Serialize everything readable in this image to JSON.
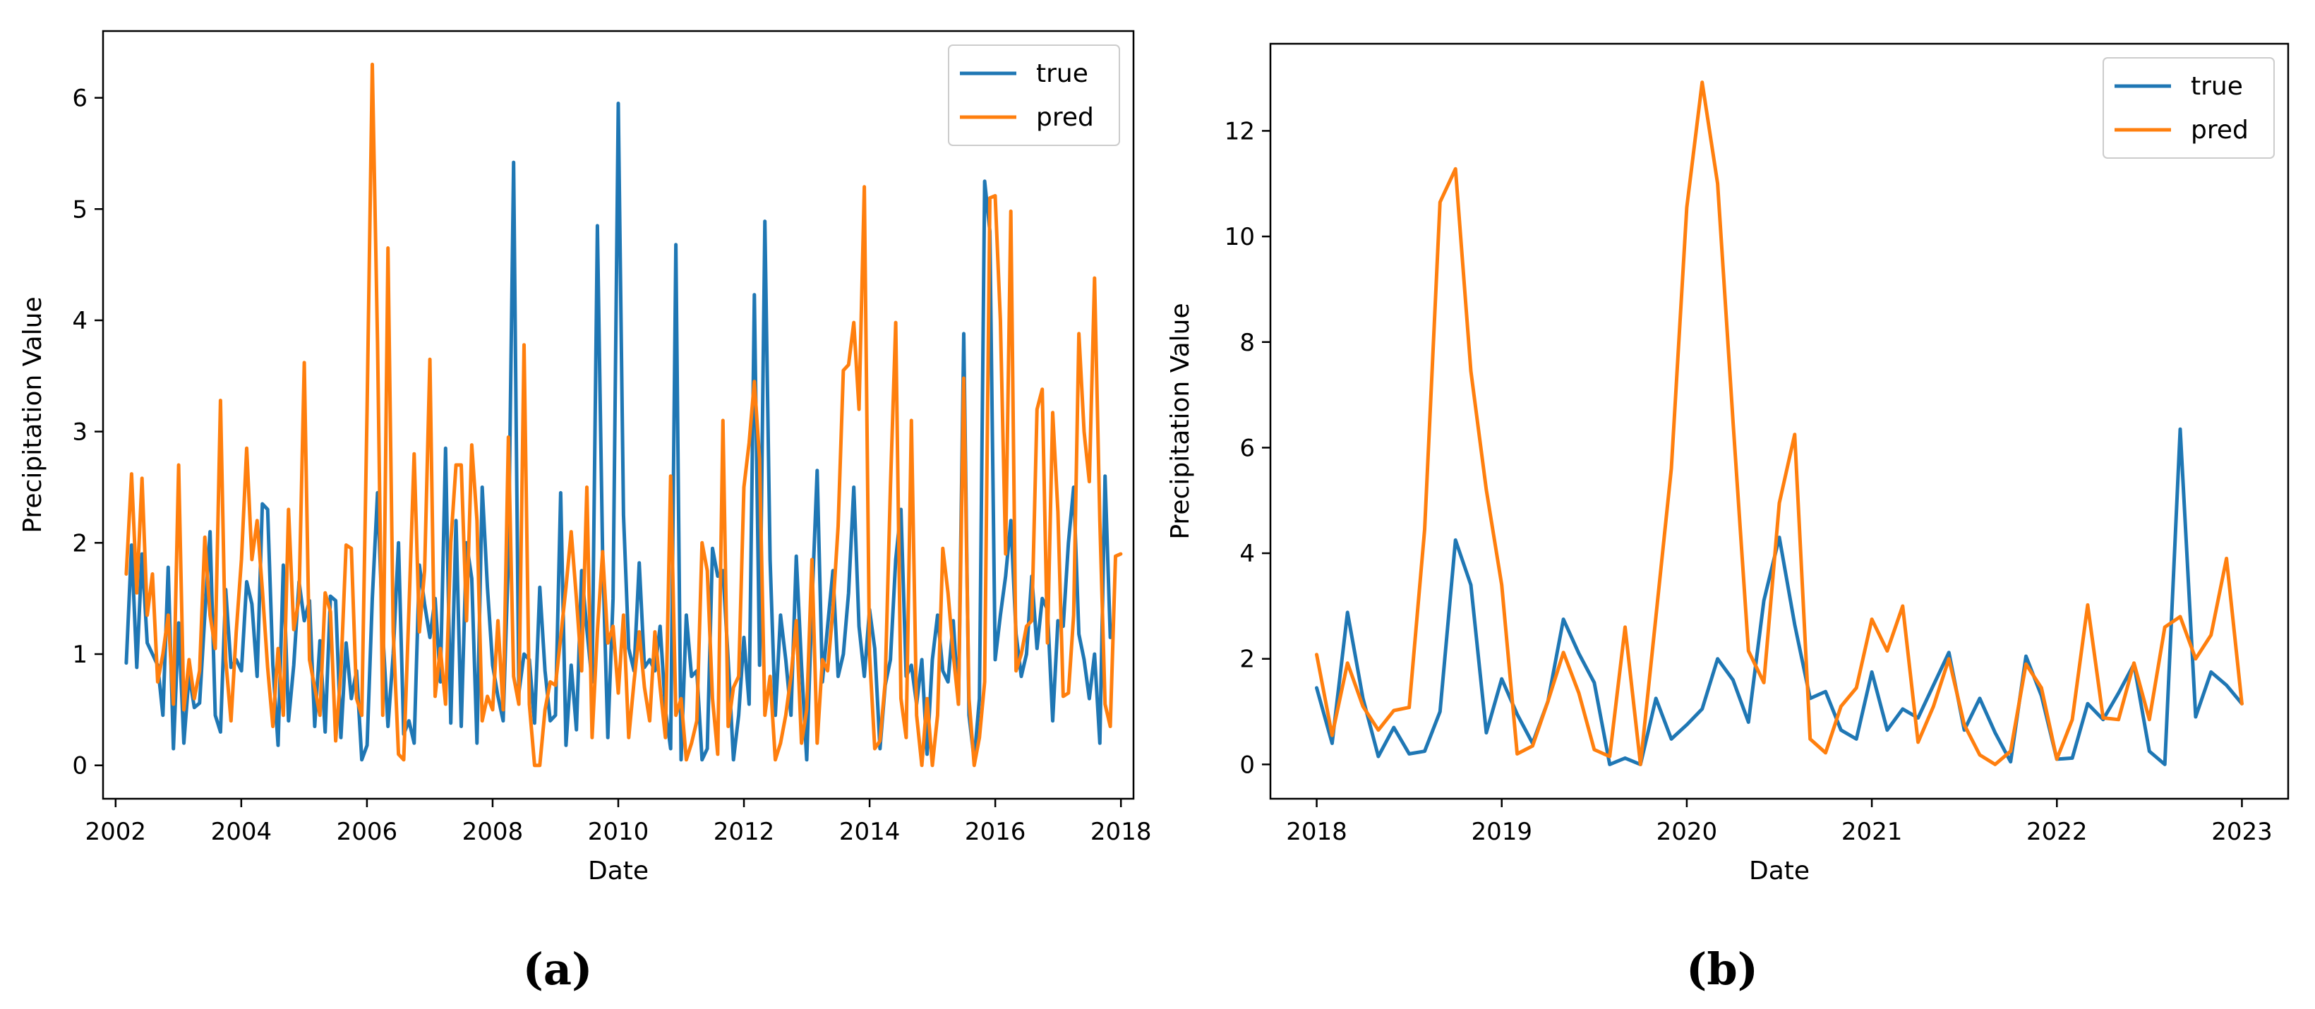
{
  "colors": {
    "true": "#1f77b4",
    "pred": "#ff7f0e",
    "axis": "#000000",
    "legend_border": "#cccccc"
  },
  "chart_data": [
    {
      "type": "line",
      "panel_label": "(a)",
      "xlabel": "Date",
      "ylabel": "Precipitation Value",
      "xlim": [
        2001.8,
        2018.2
      ],
      "ylim": [
        -0.3,
        6.6
      ],
      "xticks": [
        2002,
        2004,
        2006,
        2008,
        2010,
        2012,
        2014,
        2016,
        2018
      ],
      "xtick_labels": [
        "2002",
        "2004",
        "2006",
        "2008",
        "2010",
        "2012",
        "2014",
        "2016",
        "2018"
      ],
      "yticks": [
        0,
        1,
        2,
        3,
        4,
        5,
        6
      ],
      "ytick_labels": [
        "0",
        "1",
        "2",
        "3",
        "4",
        "5",
        "6"
      ],
      "legend": [
        "true",
        "pred"
      ],
      "legend_position": "top-right",
      "x_start": 2002.17,
      "x_step": 0.0833,
      "series": [
        {
          "name": "true",
          "values": [
            0.92,
            1.98,
            0.88,
            1.9,
            1.1,
            1.0,
            0.9,
            0.45,
            1.78,
            0.15,
            1.28,
            0.2,
            0.82,
            0.52,
            0.56,
            1.35,
            2.1,
            0.45,
            0.3,
            1.58,
            0.88,
            0.95,
            0.85,
            1.65,
            1.45,
            0.8,
            2.35,
            2.3,
            0.9,
            0.18,
            1.8,
            0.4,
            0.9,
            1.65,
            1.3,
            1.48,
            0.35,
            1.12,
            0.3,
            1.52,
            1.48,
            0.25,
            1.1,
            0.6,
            0.85,
            0.05,
            0.18,
            1.5,
            2.45,
            1.2,
            0.35,
            1.0,
            2.0,
            0.28,
            0.4,
            0.2,
            1.8,
            1.45,
            1.15,
            1.5,
            0.75,
            2.85,
            0.38,
            2.2,
            0.35,
            2.0,
            1.68,
            0.2,
            2.5,
            1.6,
            0.9,
            0.62,
            0.4,
            1.85,
            5.42,
            0.65,
            1.0,
            0.95,
            0.38,
            1.6,
            0.85,
            0.4,
            0.45,
            2.45,
            0.18,
            0.9,
            0.32,
            1.75,
            1.22,
            0.75,
            4.85,
            1.9,
            0.25,
            1.5,
            5.95,
            2.25,
            1.05,
            0.85,
            1.82,
            0.88,
            0.95,
            0.85,
            1.25,
            0.5,
            0.15,
            4.68,
            0.05,
            1.35,
            0.8,
            0.85,
            0.05,
            0.15,
            1.95,
            1.7,
            1.75,
            0.95,
            0.05,
            0.45,
            1.15,
            0.55,
            4.23,
            0.9,
            4.89,
            1.85,
            0.45,
            1.35,
            0.95,
            0.45,
            1.88,
            0.9,
            0.05,
            1.45,
            2.65,
            0.75,
            1.25,
            1.75,
            0.8,
            1.0,
            1.55,
            2.5,
            1.25,
            0.8,
            1.4,
            1.05,
            0.15,
            0.72,
            0.95,
            1.85,
            2.3,
            0.8,
            0.9,
            0.55,
            0.95,
            0.1,
            0.95,
            1.35,
            0.85,
            0.75,
            1.3,
            0.55,
            3.88,
            0.45,
            0.05,
            0.6,
            5.25,
            4.8,
            0.95,
            1.35,
            1.7,
            2.2,
            1.18,
            0.8,
            1.0,
            1.7,
            1.05,
            1.5,
            1.4,
            0.4,
            1.3,
            1.25,
            2.0,
            2.5,
            1.18,
            0.95,
            0.6,
            1.0,
            0.2,
            2.6,
            1.15
          ]
        },
        {
          "name": "pred",
          "values": [
            1.72,
            2.62,
            1.55,
            2.58,
            1.35,
            1.72,
            0.75,
            1.0,
            1.35,
            0.55,
            2.7,
            0.5,
            0.95,
            0.6,
            0.85,
            2.05,
            1.35,
            1.05,
            3.28,
            0.95,
            0.4,
            1.2,
            1.85,
            2.85,
            1.85,
            2.2,
            1.58,
            0.88,
            0.35,
            1.05,
            0.45,
            2.3,
            1.22,
            1.5,
            3.62,
            0.95,
            0.7,
            0.45,
            1.55,
            1.38,
            0.22,
            0.85,
            1.98,
            1.95,
            0.6,
            0.45,
            3.2,
            6.3,
            3.8,
            0.45,
            4.65,
            1.2,
            0.1,
            0.05,
            1.4,
            2.8,
            1.2,
            1.75,
            3.65,
            0.62,
            1.05,
            0.55,
            2.0,
            2.7,
            2.7,
            1.3,
            2.88,
            2.2,
            0.4,
            0.62,
            0.5,
            1.3,
            0.5,
            2.95,
            0.8,
            0.55,
            3.78,
            0.55,
            0.0,
            0.0,
            0.5,
            0.75,
            0.72,
            1.15,
            1.6,
            2.1,
            1.5,
            0.85,
            2.5,
            0.25,
            1.2,
            1.92,
            1.1,
            1.25,
            0.65,
            1.35,
            0.25,
            0.75,
            1.2,
            0.7,
            0.4,
            1.2,
            0.7,
            0.25,
            2.6,
            0.45,
            0.6,
            0.05,
            0.2,
            0.4,
            2.0,
            1.75,
            0.6,
            0.1,
            3.1,
            0.35,
            0.7,
            0.8,
            2.5,
            2.9,
            3.45,
            2.75,
            0.45,
            0.8,
            0.05,
            0.2,
            0.45,
            0.8,
            1.3,
            0.2,
            0.5,
            1.85,
            0.2,
            0.95,
            0.85,
            1.4,
            2.15,
            3.55,
            3.6,
            3.98,
            3.2,
            5.2,
            1.0,
            0.15,
            0.22,
            0.75,
            2.5,
            3.98,
            0.6,
            0.25,
            3.1,
            0.45,
            0.0,
            0.6,
            0.0,
            0.45,
            1.95,
            1.55,
            1.0,
            0.55,
            3.48,
            0.6,
            0.0,
            0.25,
            0.75,
            5.1,
            5.12,
            4.0,
            1.9,
            4.98,
            0.85,
            1.0,
            1.25,
            1.3,
            3.2,
            3.38,
            1.1,
            3.17,
            2.28,
            0.62,
            0.65,
            1.35,
            3.88,
            3.0,
            2.55,
            4.38,
            2.2,
            0.55,
            0.35,
            1.88,
            1.9
          ]
        }
      ]
    },
    {
      "type": "line",
      "panel_label": "(b)",
      "xlabel": "Date",
      "ylabel": "Precipitation Value",
      "xlim": [
        2017.75,
        2023.25
      ],
      "ylim": [
        -0.65,
        13.65
      ],
      "xticks": [
        2018,
        2019,
        2020,
        2021,
        2022,
        2023
      ],
      "xtick_labels": [
        "2018",
        "2019",
        "2020",
        "2021",
        "2022",
        "2023"
      ],
      "yticks": [
        0,
        2,
        4,
        6,
        8,
        10,
        12
      ],
      "ytick_labels": [
        "0",
        "2",
        "4",
        "6",
        "8",
        "10",
        "12"
      ],
      "legend": [
        "true",
        "pred"
      ],
      "legend_position": "top-right",
      "x_start": 2018.0,
      "x_step": 0.08333,
      "series": [
        {
          "name": "true",
          "values": [
            1.45,
            0.4,
            2.88,
            1.25,
            0.15,
            0.7,
            0.2,
            0.25,
            1.0,
            4.25,
            3.4,
            0.6,
            1.62,
            0.95,
            0.4,
            1.2,
            2.75,
            2.1,
            1.55,
            0.0,
            0.12,
            0.0,
            1.25,
            0.48,
            0.75,
            1.05,
            2.0,
            1.6,
            0.8,
            3.1,
            4.3,
            2.65,
            1.25,
            1.38,
            0.65,
            0.48,
            1.75,
            0.65,
            1.05,
            0.88,
            1.5,
            2.12,
            0.65,
            1.25,
            0.6,
            0.05,
            2.05,
            1.3,
            0.1,
            0.12,
            1.15,
            0.85,
            1.35,
            1.9,
            0.25,
            0.0,
            6.35,
            0.9,
            1.75,
            1.5,
            1.15
          ]
        },
        {
          "name": "pred",
          "values": [
            2.08,
            0.55,
            1.92,
            1.1,
            0.65,
            1.02,
            1.08,
            4.45,
            10.65,
            11.28,
            7.45,
            5.2,
            3.4,
            0.2,
            0.35,
            1.2,
            2.12,
            1.35,
            0.28,
            0.15,
            2.6,
            0.0,
            2.8,
            5.6,
            10.55,
            12.92,
            11.0,
            6.5,
            2.15,
            1.55,
            4.95,
            6.25,
            0.48,
            0.22,
            1.1,
            1.45,
            2.75,
            2.15,
            3.0,
            0.42,
            1.1,
            2.0,
            0.75,
            0.18,
            0.0,
            0.25,
            1.9,
            1.45,
            0.1,
            0.85,
            3.02,
            0.88,
            0.85,
            1.92,
            0.85,
            2.6,
            2.8,
            2.0,
            2.45,
            3.9,
            1.15
          ]
        }
      ]
    }
  ]
}
